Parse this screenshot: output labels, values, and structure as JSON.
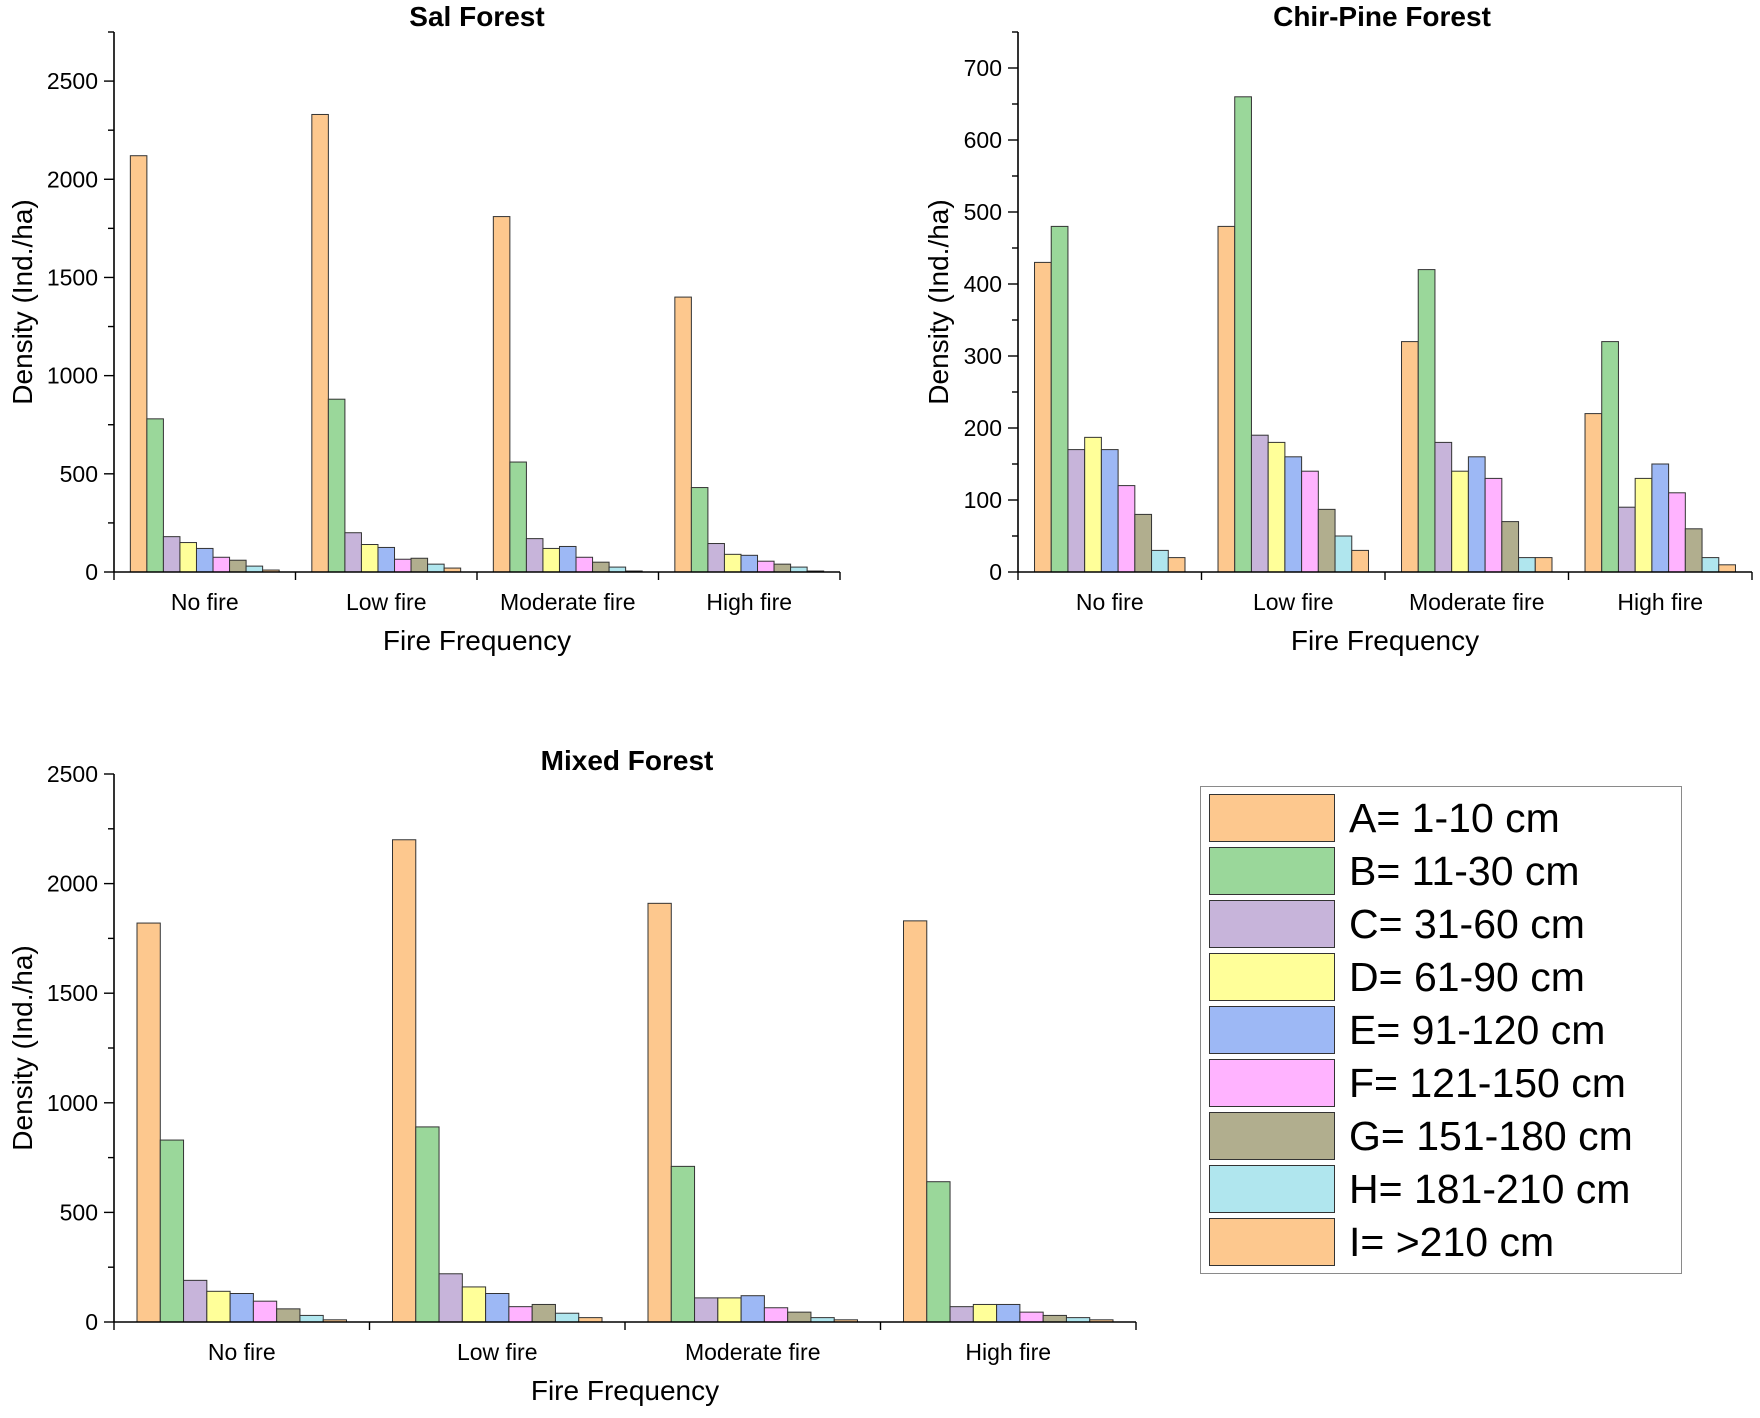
{
  "categories_series": [
    {
      "name": "A= 1-10 cm",
      "color": "#FDC88E"
    },
    {
      "name": "B= 11-30 cm",
      "color": "#9AD79A"
    },
    {
      "name": "C= 31-60 cm",
      "color": "#C7B4DA"
    },
    {
      "name": "D= 61-90 cm",
      "color": "#FFFF99"
    },
    {
      "name": "E= 91-120 cm",
      "color": "#9DB8F5"
    },
    {
      "name": "F= 121-150 cm",
      "color": "#FFB3FF"
    },
    {
      "name": "G= 151-180 cm",
      "color": "#B1AE8E"
    },
    {
      "name": "H= 181-210 cm",
      "color": "#B0E6EE"
    },
    {
      "name": "I= >210 cm",
      "color": "#FDC88E"
    }
  ],
  "chart_data": [
    {
      "type": "bar",
      "title": "Sal Forest",
      "xlabel": "Fire Frequency",
      "ylabel": "Density (Ind./ha)",
      "ylim": [
        0,
        2750
      ],
      "yticks": [
        0,
        500,
        1000,
        1500,
        2000,
        2500
      ],
      "categories": [
        "No fire",
        "Low fire",
        "Moderate fire",
        "High fire"
      ],
      "series": [
        {
          "name": "A= 1-10 cm",
          "values": [
            2120,
            2330,
            1810,
            1400
          ]
        },
        {
          "name": "B= 11-30 cm",
          "values": [
            780,
            880,
            560,
            430
          ]
        },
        {
          "name": "C= 31-60 cm",
          "values": [
            180,
            200,
            170,
            145
          ]
        },
        {
          "name": "D= 61-90 cm",
          "values": [
            150,
            140,
            120,
            90
          ]
        },
        {
          "name": "E= 91-120 cm",
          "values": [
            120,
            125,
            130,
            85
          ]
        },
        {
          "name": "F= 121-150 cm",
          "values": [
            75,
            65,
            75,
            55
          ]
        },
        {
          "name": "G= 151-180 cm",
          "values": [
            60,
            70,
            50,
            40
          ]
        },
        {
          "name": "H= 181-210 cm",
          "values": [
            30,
            40,
            25,
            25
          ]
        },
        {
          "name": "I= >210 cm",
          "values": [
            10,
            20,
            5,
            5
          ]
        }
      ]
    },
    {
      "type": "bar",
      "title": "Chir-Pine Forest",
      "xlabel": "Fire Frequency",
      "ylabel": "Density (Ind./ha)",
      "ylim": [
        0,
        750
      ],
      "yticks": [
        0,
        100,
        200,
        300,
        400,
        500,
        600,
        700
      ],
      "categories": [
        "No fire",
        "Low fire",
        "Moderate fire",
        "High fire"
      ],
      "series": [
        {
          "name": "A= 1-10 cm",
          "values": [
            430,
            480,
            320,
            220
          ]
        },
        {
          "name": "B= 11-30 cm",
          "values": [
            480,
            660,
            420,
            320
          ]
        },
        {
          "name": "C= 31-60 cm",
          "values": [
            170,
            190,
            180,
            90
          ]
        },
        {
          "name": "D= 61-90 cm",
          "values": [
            187,
            180,
            140,
            130
          ]
        },
        {
          "name": "E= 91-120 cm",
          "values": [
            170,
            160,
            160,
            150
          ]
        },
        {
          "name": "F= 121-150 cm",
          "values": [
            120,
            140,
            130,
            110
          ]
        },
        {
          "name": "G= 151-180 cm",
          "values": [
            80,
            87,
            70,
            60
          ]
        },
        {
          "name": "H= 181-210 cm",
          "values": [
            30,
            50,
            20,
            20
          ]
        },
        {
          "name": "I= >210 cm",
          "values": [
            20,
            30,
            20,
            10
          ]
        }
      ]
    },
    {
      "type": "bar",
      "title": "Mixed Forest",
      "xlabel": "Fire Frequency",
      "ylabel": "Density (Ind./ha)",
      "ylim": [
        0,
        2500
      ],
      "yticks": [
        0,
        500,
        1000,
        1500,
        2000,
        2500
      ],
      "categories": [
        "No fire",
        "Low fire",
        "Moderate fire",
        "High fire"
      ],
      "series": [
        {
          "name": "A= 1-10 cm",
          "values": [
            1820,
            2200,
            1910,
            1830
          ]
        },
        {
          "name": "B= 11-30 cm",
          "values": [
            830,
            890,
            710,
            640
          ]
        },
        {
          "name": "C= 31-60 cm",
          "values": [
            190,
            220,
            110,
            70
          ]
        },
        {
          "name": "D= 61-90 cm",
          "values": [
            140,
            160,
            110,
            80
          ]
        },
        {
          "name": "E= 91-120 cm",
          "values": [
            130,
            130,
            120,
            80
          ]
        },
        {
          "name": "F= 121-150 cm",
          "values": [
            95,
            70,
            65,
            45
          ]
        },
        {
          "name": "G= 151-180 cm",
          "values": [
            60,
            80,
            45,
            30
          ]
        },
        {
          "name": "H= 181-210 cm",
          "values": [
            30,
            40,
            20,
            20
          ]
        },
        {
          "name": "I= >210 cm",
          "values": [
            10,
            20,
            10,
            10
          ]
        }
      ]
    }
  ]
}
